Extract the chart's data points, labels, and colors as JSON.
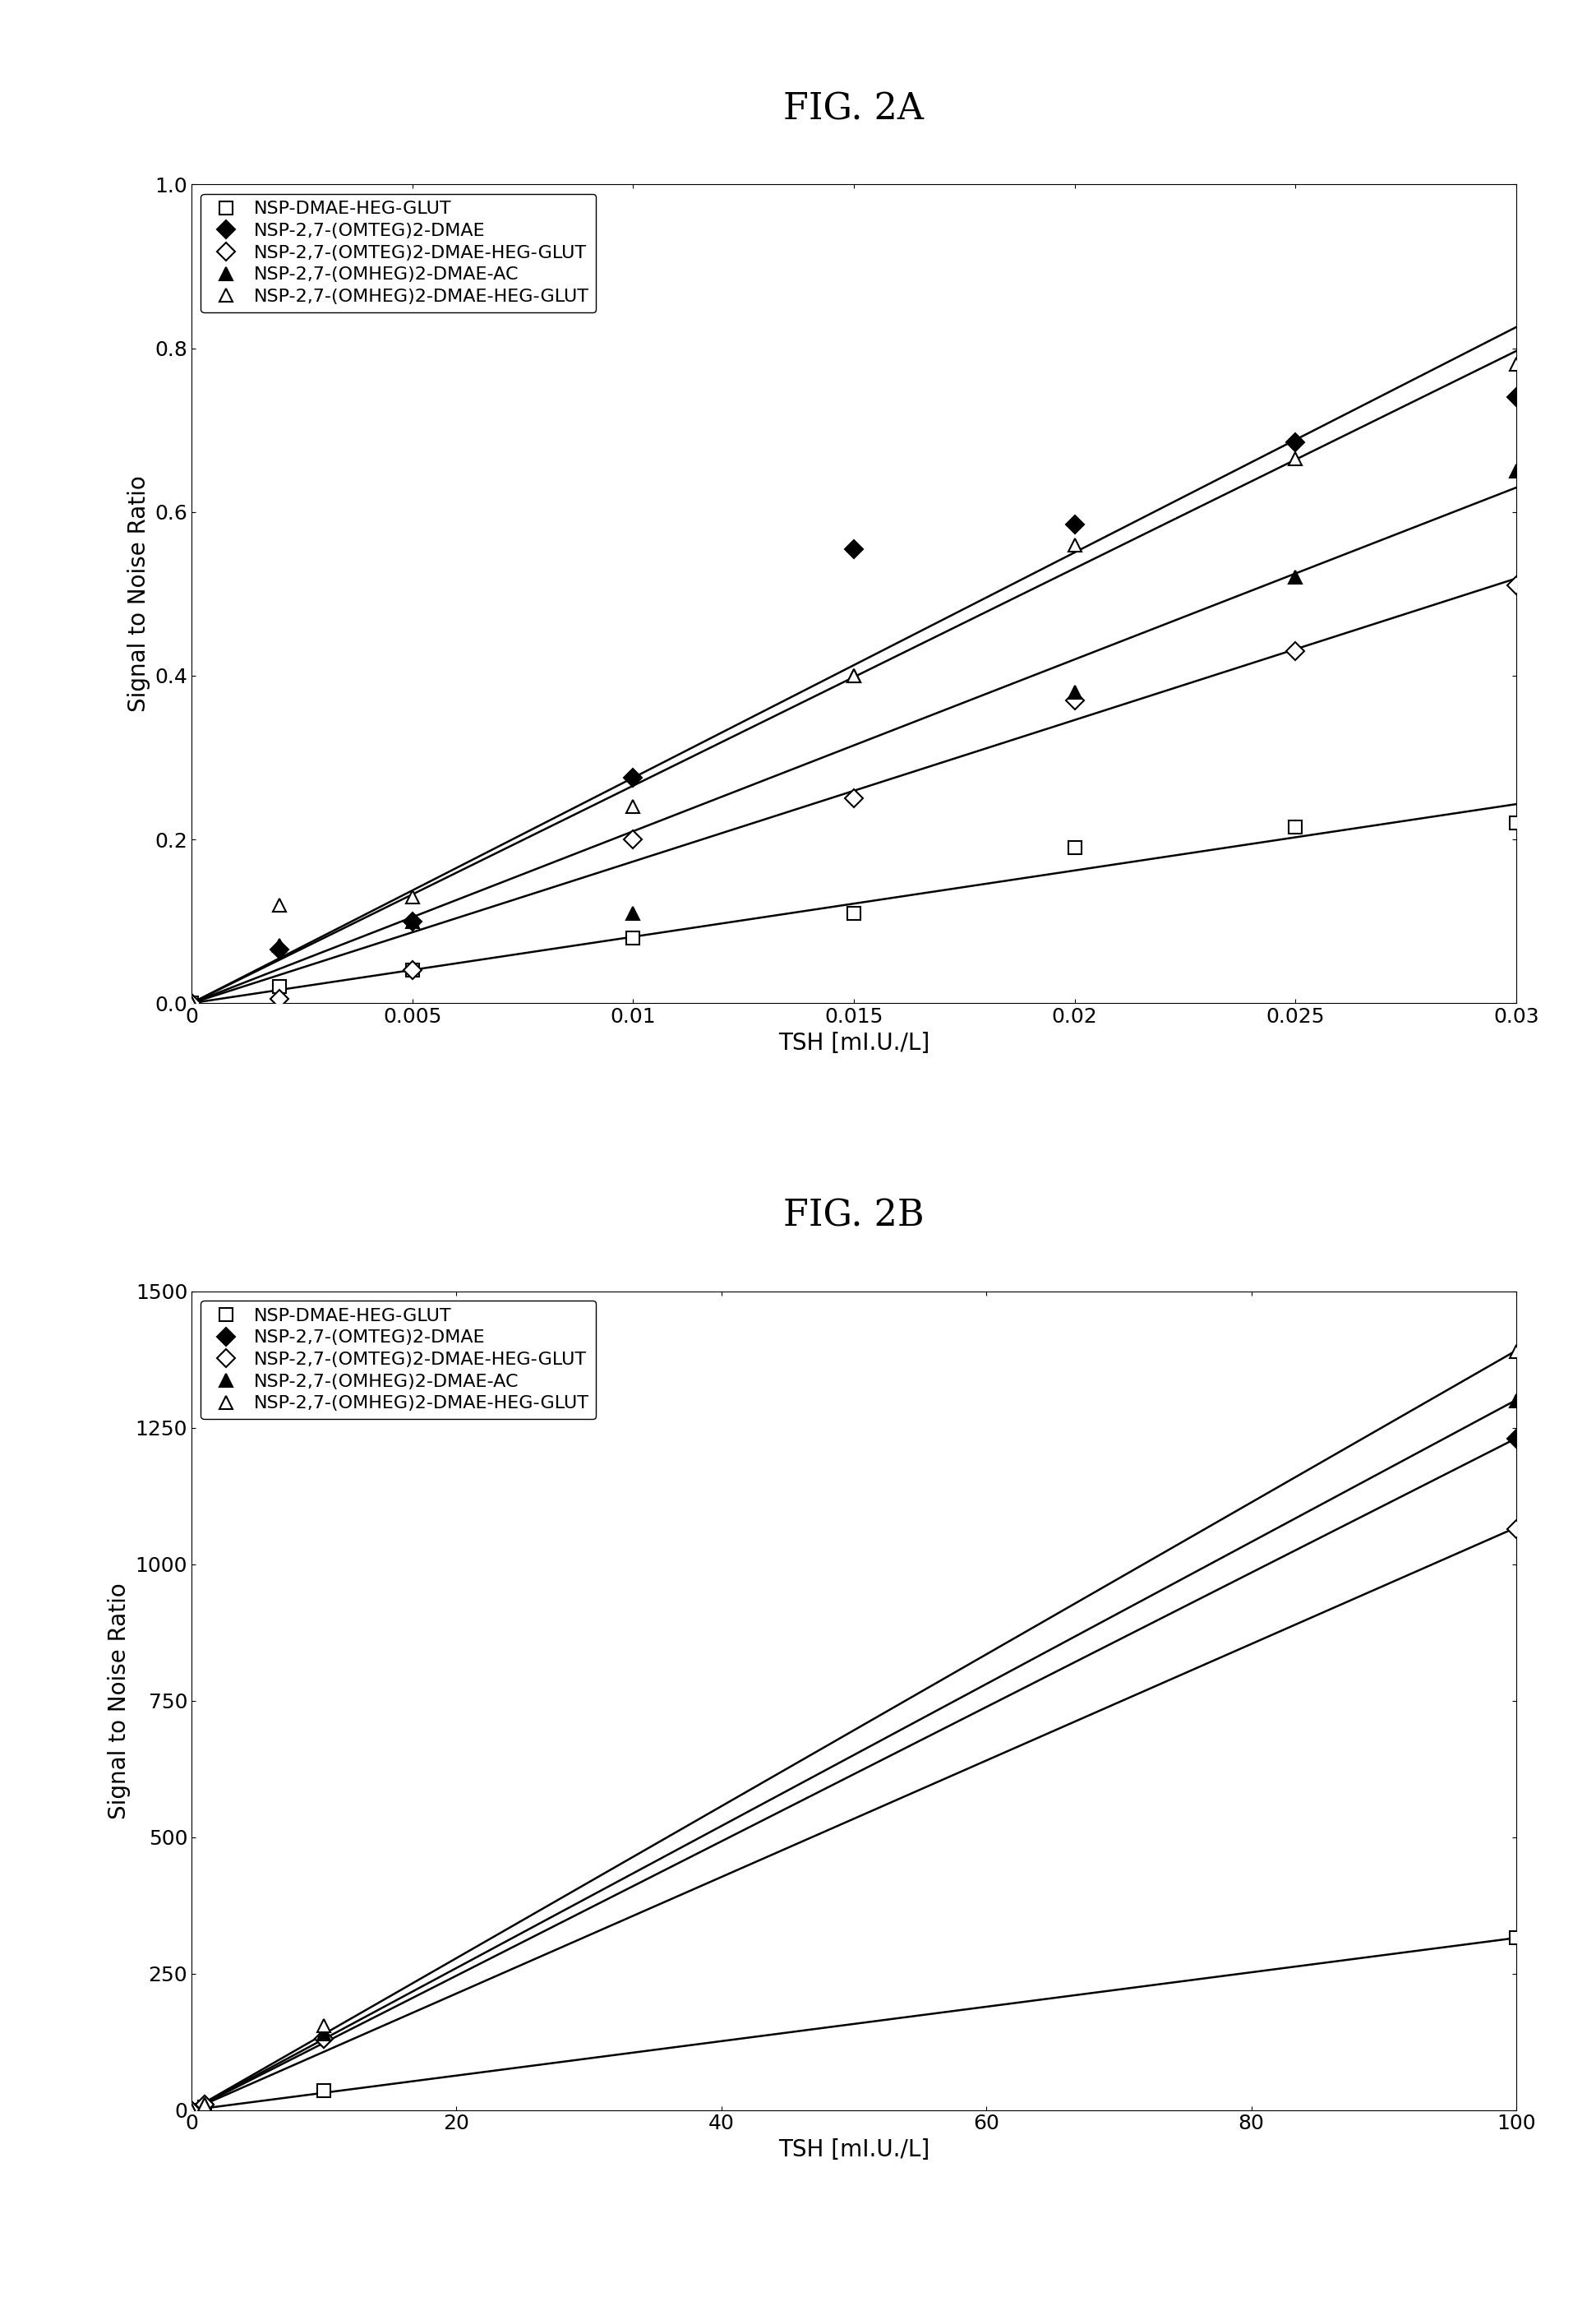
{
  "fig2a": {
    "title": "FIG. 2A",
    "xlabel": "TSH [mI.U./L]",
    "ylabel": "Signal to Noise Ratio",
    "xlim": [
      0,
      0.03
    ],
    "ylim": [
      0,
      1.0
    ],
    "xticks": [
      0,
      0.005,
      0.01,
      0.015,
      0.02,
      0.025,
      0.03
    ],
    "yticks": [
      0.0,
      0.2,
      0.4,
      0.6,
      0.8,
      1.0
    ],
    "series": [
      {
        "label": "NSP-DMAE-HEG-GLUT",
        "marker": "s",
        "filled": false,
        "x": [
          0,
          0.002,
          0.005,
          0.01,
          0.015,
          0.02,
          0.025,
          0.03
        ],
        "y": [
          0,
          0.02,
          0.04,
          0.08,
          0.11,
          0.19,
          0.215,
          0.22
        ]
      },
      {
        "label": "NSP-2,7-(OMTEG)2-DMAE",
        "marker": "D",
        "filled": true,
        "x": [
          0,
          0.002,
          0.005,
          0.01,
          0.015,
          0.02,
          0.025,
          0.03
        ],
        "y": [
          0,
          0.065,
          0.1,
          0.275,
          0.555,
          0.585,
          0.685,
          0.74
        ]
      },
      {
        "label": "NSP-2,7-(OMTEG)2-DMAE-HEG-GLUT",
        "marker": "D",
        "filled": false,
        "x": [
          0,
          0.002,
          0.005,
          0.01,
          0.015,
          0.02,
          0.025,
          0.03
        ],
        "y": [
          0,
          0.005,
          0.04,
          0.2,
          0.25,
          0.37,
          0.43,
          0.51
        ]
      },
      {
        "label": "NSP-2,7-(OMHEG)2-DMAE-AC",
        "marker": "^",
        "filled": true,
        "x": [
          0,
          0.002,
          0.005,
          0.01,
          0.015,
          0.02,
          0.025,
          0.03
        ],
        "y": [
          0,
          0.07,
          0.1,
          0.11,
          0.4,
          0.38,
          0.52,
          0.65
        ]
      },
      {
        "label": "NSP-2,7-(OMHEG)2-DMAE-HEG-GLUT",
        "marker": "^",
        "filled": false,
        "x": [
          0,
          0.002,
          0.005,
          0.01,
          0.015,
          0.02,
          0.025,
          0.03
        ],
        "y": [
          0,
          0.12,
          0.13,
          0.24,
          0.4,
          0.56,
          0.665,
          0.78
        ]
      }
    ]
  },
  "fig2b": {
    "title": "FIG. 2B",
    "xlabel": "TSH [mI.U./L]",
    "ylabel": "Signal to Noise Ratio",
    "xlim": [
      0,
      100
    ],
    "ylim": [
      0,
      1500
    ],
    "xticks": [
      0,
      20,
      40,
      60,
      80,
      100
    ],
    "yticks": [
      0,
      250,
      500,
      750,
      1000,
      1250,
      1500
    ],
    "series": [
      {
        "label": "NSP-DMAE-HEG-GLUT",
        "marker": "s",
        "filled": false,
        "x": [
          0,
          1,
          10,
          100
        ],
        "y": [
          0,
          5,
          35,
          315
        ]
      },
      {
        "label": "NSP-2,7-(OMTEG)2-DMAE",
        "marker": "D",
        "filled": true,
        "x": [
          0,
          1,
          10,
          100
        ],
        "y": [
          0,
          10,
          130,
          1230
        ]
      },
      {
        "label": "NSP-2,7-(OMTEG)2-DMAE-HEG-GLUT",
        "marker": "D",
        "filled": false,
        "x": [
          0,
          1,
          10,
          100
        ],
        "y": [
          0,
          10,
          130,
          1065
        ]
      },
      {
        "label": "NSP-2,7-(OMHEG)2-DMAE-AC",
        "marker": "^",
        "filled": true,
        "x": [
          0,
          1,
          10,
          100
        ],
        "y": [
          0,
          10,
          140,
          1300
        ]
      },
      {
        "label": "NSP-2,7-(OMHEG)2-DMAE-HEG-GLUT",
        "marker": "^",
        "filled": false,
        "x": [
          0,
          1,
          10,
          100
        ],
        "y": [
          0,
          10,
          155,
          1390
        ]
      }
    ]
  },
  "background_color": "#ffffff",
  "title_fontsize": 32,
  "label_fontsize": 20,
  "tick_fontsize": 18,
  "legend_fontsize": 16,
  "marker_size": 11,
  "line_width": 1.8
}
